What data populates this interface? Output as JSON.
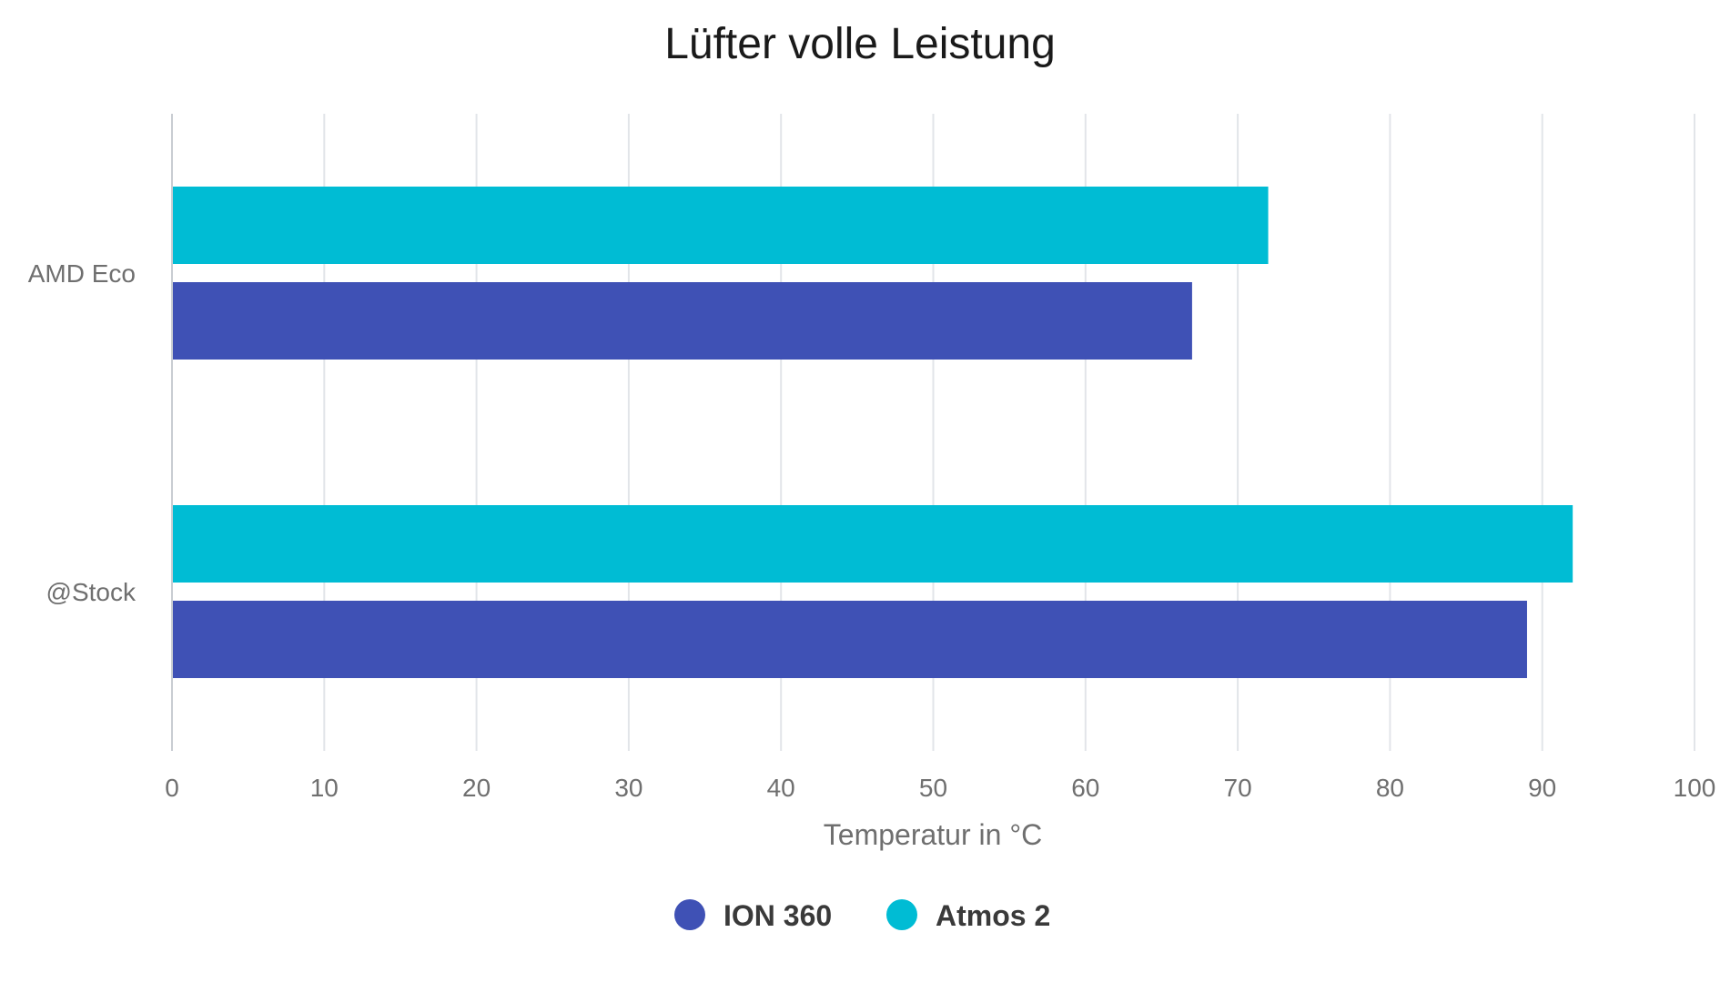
{
  "chart_data": {
    "type": "bar",
    "orientation": "horizontal",
    "title": "Lüfter volle Leistung",
    "xlabel": "Temperatur in °C",
    "ylabel": "",
    "xlim": [
      0,
      100
    ],
    "ticks": [
      "0",
      "10",
      "20",
      "30",
      "40",
      "50",
      "60",
      "70",
      "80",
      "90",
      "100"
    ],
    "categories": [
      "AMD Eco",
      "@Stock"
    ],
    "series": [
      {
        "name": "Atmos 2",
        "color": "#00bcd4",
        "values": [
          72,
          92
        ]
      },
      {
        "name": "ION 360",
        "color": "#3f51b5",
        "values": [
          67,
          89
        ]
      }
    ],
    "legend": {
      "position": "bottom",
      "items": [
        {
          "name": "ION 360",
          "color": "#3f51b5"
        },
        {
          "name": "Atmos 2",
          "color": "#00bcd4"
        }
      ]
    },
    "grid": true
  }
}
